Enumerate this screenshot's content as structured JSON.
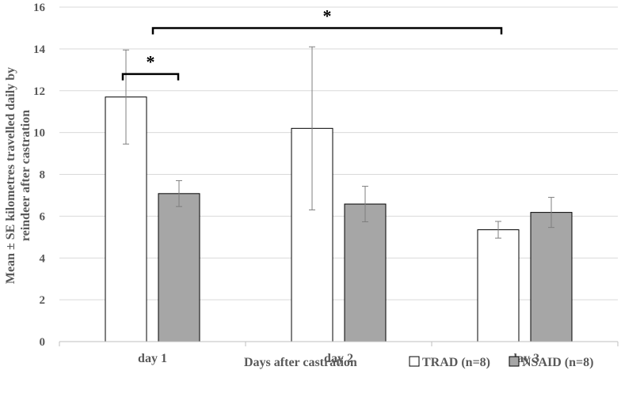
{
  "chart_data": {
    "type": "bar",
    "title": "",
    "xlabel": "Days after castration",
    "ylabel_line1": "Mean ± SE kilometres travelled daily by",
    "ylabel_line2": "reindeer after castration",
    "ylim": [
      0,
      16
    ],
    "yticks": [
      0,
      2,
      4,
      6,
      8,
      10,
      12,
      14,
      16
    ],
    "categories": [
      "day 1",
      "day 2",
      "day 3"
    ],
    "series": [
      {
        "name": "TRAD (n=8)",
        "values": [
          11.7,
          10.2,
          5.35
        ],
        "errors": [
          2.25,
          3.9,
          0.4
        ],
        "color": "#ffffff"
      },
      {
        "name": "NSAID (n=8)",
        "values": [
          7.08,
          6.58,
          6.18
        ],
        "errors": [
          0.62,
          0.85,
          0.72
        ],
        "color": "#a6a6a6"
      }
    ],
    "legend_position": "bottom-right",
    "grid": true,
    "annotations": [
      {
        "text": "*",
        "between": [
          "day 1 TRAD (n=8)",
          "day 1 NSAID (n=8)"
        ],
        "y": 12.8
      },
      {
        "text": "*",
        "between": [
          "day 1",
          "day 3"
        ],
        "y": 15.0
      }
    ]
  }
}
